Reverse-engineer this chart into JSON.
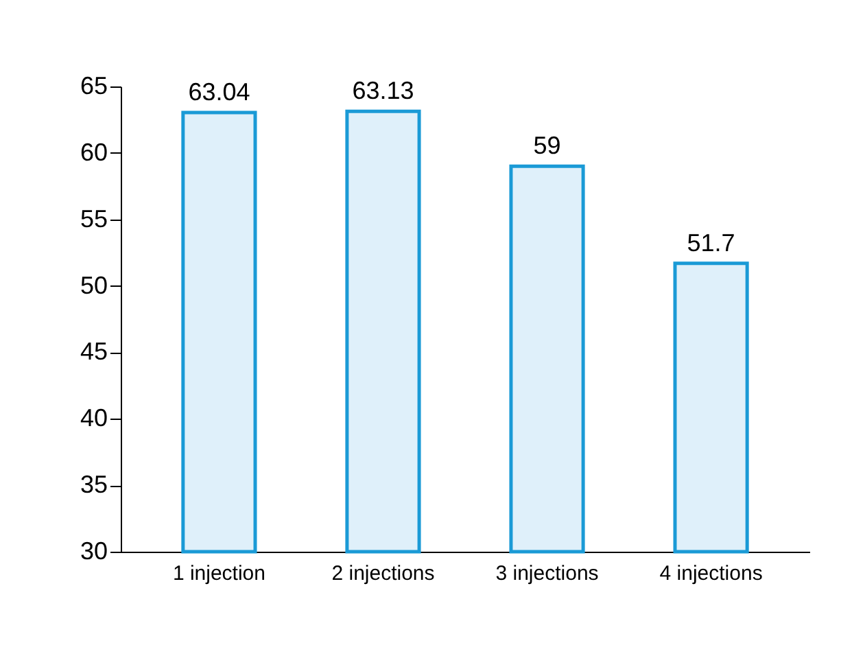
{
  "chart_data": {
    "type": "bar",
    "categories": [
      "1 injection",
      "2 injections",
      "3 injections",
      "4 injections"
    ],
    "series": [
      {
        "color": "#1a9ad6",
        "values": [
          63.04,
          63.13,
          59,
          51.7
        ]
      }
    ],
    "ylim": [
      30,
      65
    ],
    "yticks": [
      30,
      35,
      40,
      45,
      50,
      55,
      60,
      65
    ],
    "grid": false,
    "data_labels": true
  }
}
